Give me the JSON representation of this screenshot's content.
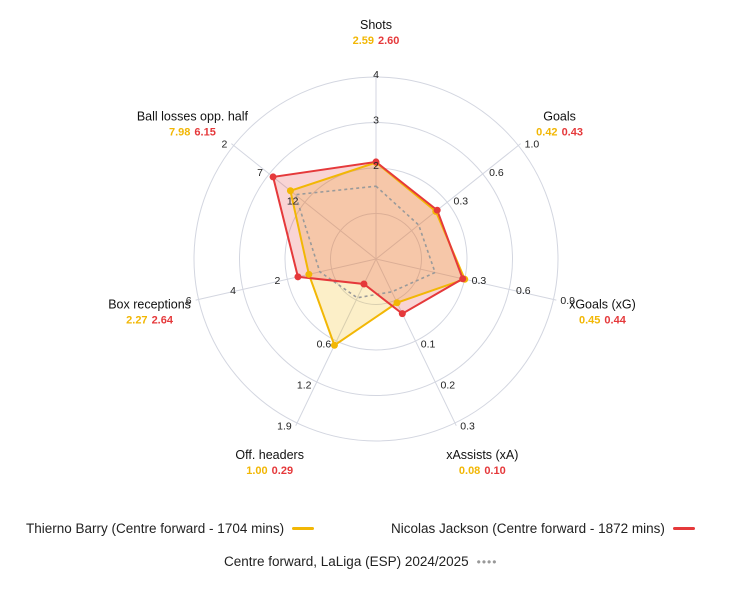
{
  "colors": {
    "p1": "#f2b705",
    "p2": "#e5393b",
    "avg": "#9a9a9a",
    "grid": "#d3d6e0"
  },
  "legend": {
    "p1": "Thierno Barry (Centre forward - 1704 mins)",
    "p2": "Nicolas Jackson (Centre forward - 1872 mins)",
    "avg": "Centre forward, LaLiga (ESP) 2024/2025"
  },
  "chart_data": {
    "type": "radar",
    "series": [
      {
        "name": "Thierno Barry (Centre forward - 1704 mins)",
        "values": [
          2.59,
          0.42,
          0.45,
          0.08,
          1.0,
          2.27,
          7.98
        ]
      },
      {
        "name": "Nicolas Jackson (Centre forward - 1872 mins)",
        "values": [
          2.6,
          0.43,
          0.44,
          0.1,
          0.29,
          2.64,
          6.15
        ]
      },
      {
        "name": "Centre forward, LaLiga (ESP) 2024/2025",
        "values": [
          2.2,
          0.3,
          0.3,
          0.06,
          0.45,
          1.9,
          8.5
        ]
      }
    ],
    "axes": [
      {
        "label": "Shots",
        "v1": "2.59",
        "v2": "2.60",
        "ticks": [
          "2",
          "3",
          "4"
        ],
        "min": 1,
        "max": 4
      },
      {
        "label": "Goals",
        "v1": "0.42",
        "v2": "0.43",
        "ticks": [
          "0.3",
          "0.6",
          "1.0"
        ],
        "min": 0,
        "max": 1.0
      },
      {
        "label": "xGoals (xG)",
        "v1": "0.45",
        "v2": "0.44",
        "ticks": [
          "0.3",
          "0.6",
          "0.9"
        ],
        "min": 0,
        "max": 0.9
      },
      {
        "label": "xAssists (xA)",
        "v1": "0.08",
        "v2": "0.10",
        "ticks": [
          "0.1",
          "0.2",
          "0.3"
        ],
        "min": 0,
        "max": 0.3
      },
      {
        "label": "Off. headers",
        "v1": "1.00",
        "v2": "0.29",
        "ticks": [
          "0.6",
          "1.2",
          "1.9"
        ],
        "min": 0,
        "max": 1.9
      },
      {
        "label": "Box receptions",
        "v1": "2.27",
        "v2": "2.64",
        "ticks": [
          "2",
          "4",
          "6"
        ],
        "min": 0,
        "max": 6
      },
      {
        "label": "Ball losses opp. half",
        "v1": "7.98",
        "v2": "6.15",
        "ticks": [
          "12",
          "7",
          "2"
        ],
        "min": 17,
        "max": 2
      }
    ]
  }
}
